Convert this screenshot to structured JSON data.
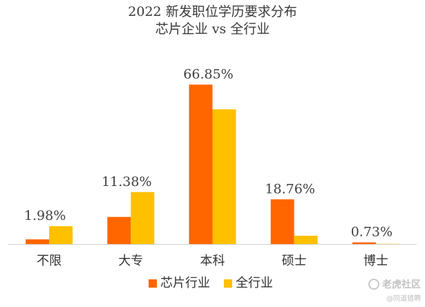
{
  "chart_data": {
    "type": "bar",
    "title_line1": "2022 新发职位学历要求分布",
    "title_line2": "芯片企业 vs 全行业",
    "categories": [
      "不限",
      "大专",
      "本科",
      "硕士",
      "博士"
    ],
    "series": [
      {
        "name": "芯片行业",
        "color": "#FF6600",
        "values": [
          1.98,
          11.38,
          66.85,
          18.76,
          0.73
        ]
      },
      {
        "name": "全行业",
        "color": "#FFC000",
        "values": [
          7.5,
          21.8,
          56.5,
          3.5,
          0.1
        ]
      }
    ],
    "data_labels": [
      "1.98%",
      "11.38%",
      "66.85%",
      "18.76%",
      "0.73%"
    ],
    "ylim": [
      0,
      70
    ],
    "grid": false,
    "legend_position": "bottom"
  },
  "watermark": {
    "main": "老虎社区",
    "sub": "@同道猎聘"
  }
}
